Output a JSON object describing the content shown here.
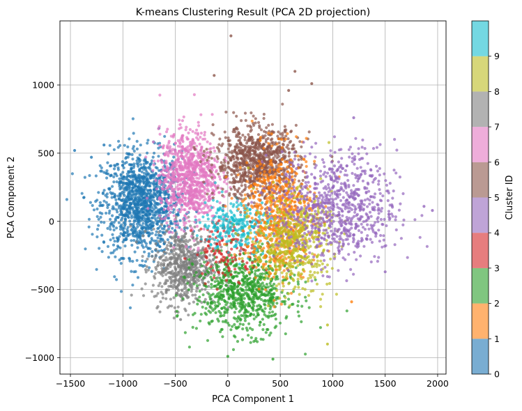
{
  "chart_data": {
    "type": "scatter",
    "title": "K-means Clustering Result (PCA 2D projection)",
    "xlabel": "PCA Component 1",
    "ylabel": "PCA Component 2",
    "xlim": [
      -1600,
      2080
    ],
    "ylim": [
      -1120,
      1470
    ],
    "xticks": [
      -1500,
      -1000,
      -500,
      0,
      500,
      1000,
      1500,
      2000
    ],
    "yticks": [
      -1000,
      -500,
      0,
      500,
      1000
    ],
    "xtick_labels": [
      "−1500",
      "−1000",
      "−500",
      "0",
      "500",
      "1000",
      "1500",
      "2000"
    ],
    "ytick_labels": [
      "−1000",
      "−500",
      "0",
      "500",
      "1000"
    ],
    "grid": true,
    "colorbar": {
      "label": "Cluster ID",
      "ticks": [
        "0",
        "1",
        "2",
        "3",
        "4",
        "5",
        "6",
        "7",
        "8",
        "9"
      ],
      "colors": [
        "#1f77b4",
        "#ff7f0e",
        "#2ca02c",
        "#d62728",
        "#9467bd",
        "#8c564b",
        "#e377c2",
        "#7f7f7f",
        "#bcbd22",
        "#17becf"
      ]
    },
    "clusters": [
      {
        "id": 0,
        "color": "#1f77b4",
        "center": [
          -820,
          130
        ],
        "spread": [
          190,
          190
        ],
        "count": 1300
      },
      {
        "id": 1,
        "color": "#ff7f0e",
        "center": [
          500,
          50
        ],
        "spread": [
          170,
          230
        ],
        "count": 700
      },
      {
        "id": 2,
        "color": "#2ca02c",
        "center": [
          150,
          -520
        ],
        "spread": [
          230,
          150
        ],
        "count": 800
      },
      {
        "id": 3,
        "color": "#d62728",
        "center": [
          0,
          -200
        ],
        "spread": [
          160,
          110
        ],
        "count": 140
      },
      {
        "id": 4,
        "color": "#9467bd",
        "center": [
          1050,
          100
        ],
        "spread": [
          280,
          210
        ],
        "count": 800
      },
      {
        "id": 5,
        "color": "#8c564b",
        "center": [
          280,
          430
        ],
        "spread": [
          200,
          130
        ],
        "count": 900
      },
      {
        "id": 6,
        "color": "#e377c2",
        "center": [
          -370,
          320
        ],
        "spread": [
          140,
          170
        ],
        "count": 900
      },
      {
        "id": 7,
        "color": "#7f7f7f",
        "center": [
          -420,
          -330
        ],
        "spread": [
          150,
          140
        ],
        "count": 650
      },
      {
        "id": 8,
        "color": "#bcbd22",
        "center": [
          620,
          -150
        ],
        "spread": [
          180,
          170
        ],
        "count": 550
      },
      {
        "id": 9,
        "color": "#17becf",
        "center": [
          80,
          -20
        ],
        "spread": [
          160,
          100
        ],
        "count": 260
      }
    ],
    "outliers": [
      {
        "x": -1460,
        "y": 520,
        "c": 0
      },
      {
        "x": -1300,
        "y": 470,
        "c": 0
      },
      {
        "x": -1180,
        "y": 560,
        "c": 0
      },
      {
        "x": 30,
        "y": 1360,
        "c": 5
      },
      {
        "x": -130,
        "y": 1070,
        "c": 5
      },
      {
        "x": 800,
        "y": 1010,
        "c": 5
      },
      {
        "x": 640,
        "y": 1100,
        "c": 5
      },
      {
        "x": 580,
        "y": 960,
        "c": 5
      },
      {
        "x": 1200,
        "y": 760,
        "c": 4
      },
      {
        "x": 1950,
        "y": 80,
        "c": 4
      },
      {
        "x": 1870,
        "y": 110,
        "c": 4
      },
      {
        "x": 1500,
        "y": -370,
        "c": 4
      },
      {
        "x": 1180,
        "y": -590,
        "c": 1
      },
      {
        "x": 950,
        "y": -900,
        "c": 8
      },
      {
        "x": 950,
        "y": -760,
        "c": 8
      },
      {
        "x": 430,
        "y": -1010,
        "c": 2
      },
      {
        "x": 0,
        "y": -990,
        "c": 2
      },
      {
        "x": -450,
        "y": -720,
        "c": 7
      }
    ]
  }
}
